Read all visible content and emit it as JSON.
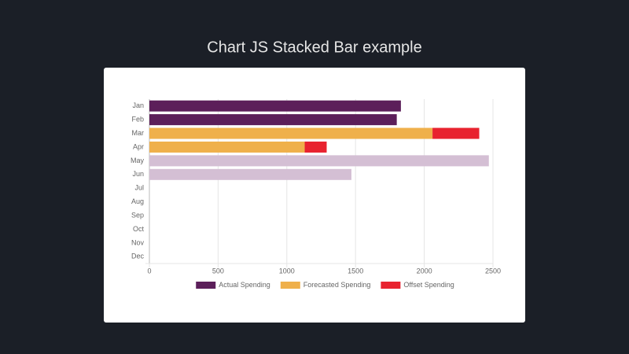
{
  "chart_data": {
    "type": "stacked-horizontal-bar",
    "title": "Chart JS Stacked Bar example",
    "categories": [
      "Jan",
      "Feb",
      "Mar",
      "Apr",
      "May",
      "Jun",
      "Jul",
      "Aug",
      "Sep",
      "Oct",
      "Nov",
      "Dec"
    ],
    "series": [
      {
        "name": "Actual Spending",
        "color": "#5c1f5a",
        "colors": [
          "#5c1f5a",
          "#5c1f5a",
          "#5c1f5a",
          "#5c1f5a",
          "#d4bfd4",
          "#d4bfd4",
          "#d4bfd4",
          "#d4bfd4",
          "#d4bfd4",
          "#d4bfd4",
          "#d4bfd4",
          "#d4bfd4"
        ],
        "values": [
          1830,
          1800,
          null,
          null,
          2470,
          1470,
          null,
          null,
          null,
          null,
          null,
          null
        ]
      },
      {
        "name": "Forecasted Spending",
        "color": "#efb04b",
        "values": [
          null,
          null,
          2060,
          1130,
          null,
          null,
          null,
          null,
          null,
          null,
          null,
          null
        ]
      },
      {
        "name": "Offset Spending",
        "color": "#e8222f",
        "values": [
          null,
          null,
          340,
          160,
          null,
          null,
          null,
          null,
          null,
          null,
          null,
          null
        ]
      }
    ],
    "xlim": [
      0,
      2500
    ],
    "xticks": [
      0,
      500,
      1000,
      1500,
      2000,
      2500
    ],
    "grid": true,
    "legend": "bottom"
  }
}
